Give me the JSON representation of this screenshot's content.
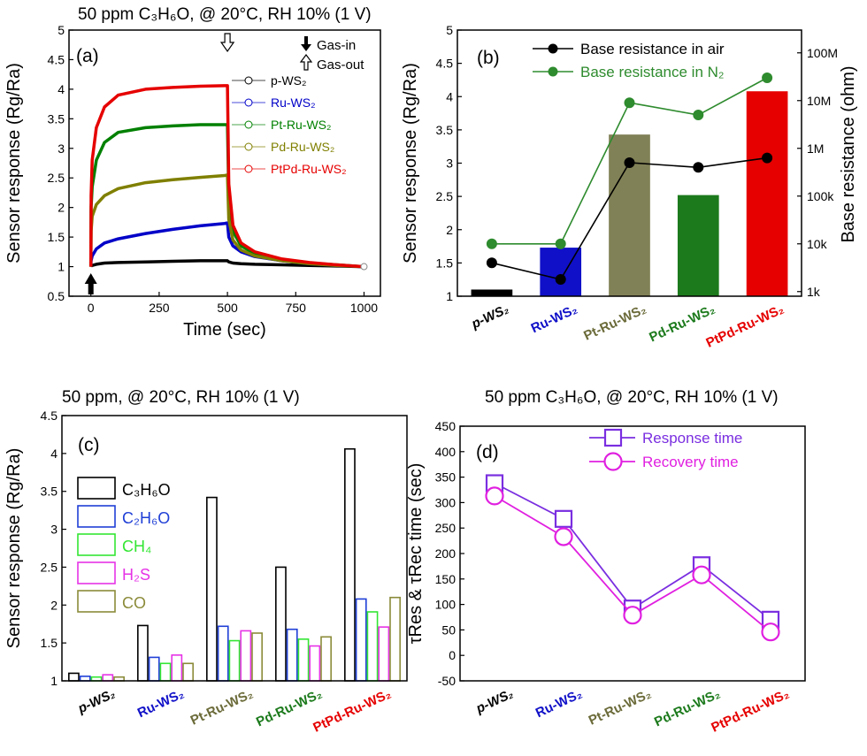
{
  "figure": {
    "panel_a_title": "50 ppm C₃H₆O, @ 20°C, RH 10% (1 V)",
    "panel_c_title": "50 ppm, @ 20°C, RH 10% (1 V)",
    "panel_d_title": "50 ppm C₃H₆O, @ 20°C, RH 10% (1 V)"
  },
  "chart_data": [
    {
      "panel": "(a)",
      "type": "line",
      "title": "50 ppm C₃H₆O, @ 20°C, RH 10% (1 V)",
      "xlabel": "Time (sec)",
      "ylabel": "Sensor response (Rg/Ra)",
      "xlim": [
        -80,
        1060
      ],
      "ylim": [
        0.5,
        5.0
      ],
      "xticks": [
        0,
        250,
        500,
        750,
        1000
      ],
      "yticks": [
        0.5,
        1.0,
        1.5,
        2.0,
        2.5,
        3.0,
        3.5,
        4.0,
        4.5,
        5.0
      ],
      "annotations": [
        "Gas-in",
        "Gas-out"
      ],
      "gas_in_time": 0,
      "gas_out_time": 500,
      "series": [
        {
          "name": "p-WS₂",
          "color": "#000000",
          "x": [
            0,
            1,
            5,
            20,
            50,
            100,
            200,
            300,
            400,
            490,
            500,
            505,
            520,
            550,
            600,
            700,
            800,
            900,
            1000
          ],
          "y": [
            1.0,
            1.01,
            1.02,
            1.04,
            1.06,
            1.07,
            1.08,
            1.09,
            1.1,
            1.1,
            1.1,
            1.08,
            1.06,
            1.05,
            1.04,
            1.03,
            1.02,
            1.01,
            1.0
          ]
        },
        {
          "name": "Ru-WS₂",
          "color": "#0000c8",
          "x": [
            0,
            1,
            5,
            20,
            50,
            100,
            200,
            300,
            400,
            490,
            500,
            505,
            520,
            550,
            600,
            700,
            800,
            900,
            1000
          ],
          "y": [
            1.0,
            1.1,
            1.18,
            1.3,
            1.4,
            1.47,
            1.56,
            1.63,
            1.69,
            1.73,
            1.74,
            1.5,
            1.35,
            1.25,
            1.17,
            1.1,
            1.05,
            1.02,
            1.0
          ]
        },
        {
          "name": "Pt-Ru-WS₂",
          "color": "#008000",
          "x": [
            0,
            1,
            5,
            20,
            50,
            100,
            200,
            300,
            400,
            490,
            500,
            505,
            520,
            550,
            600,
            700,
            800,
            900,
            1000
          ],
          "y": [
            1.0,
            2.0,
            2.35,
            2.8,
            3.1,
            3.27,
            3.35,
            3.38,
            3.4,
            3.4,
            3.4,
            2.2,
            1.6,
            1.35,
            1.22,
            1.12,
            1.06,
            1.03,
            1.0
          ]
        },
        {
          "name": "Pd-Ru-WS₂",
          "color": "#7f7f00",
          "x": [
            0,
            1,
            5,
            20,
            50,
            100,
            200,
            300,
            400,
            490,
            500,
            505,
            520,
            550,
            600,
            700,
            800,
            900,
            1000
          ],
          "y": [
            1.0,
            1.6,
            1.85,
            2.05,
            2.2,
            2.32,
            2.42,
            2.47,
            2.51,
            2.54,
            2.55,
            1.8,
            1.45,
            1.28,
            1.18,
            1.1,
            1.05,
            1.02,
            1.0
          ]
        },
        {
          "name": "PtPd-Ru-WS₂",
          "color": "#e60000",
          "x": [
            0,
            1,
            5,
            20,
            50,
            100,
            200,
            300,
            400,
            490,
            500,
            505,
            520,
            550,
            600,
            700,
            800,
            900,
            1000
          ],
          "y": [
            1.0,
            2.2,
            2.8,
            3.35,
            3.7,
            3.9,
            4.0,
            4.03,
            4.05,
            4.06,
            4.06,
            2.4,
            1.7,
            1.4,
            1.25,
            1.13,
            1.07,
            1.03,
            1.0
          ]
        }
      ]
    },
    {
      "panel": "(b)",
      "type": "bar",
      "categories": [
        "p-WS₂",
        "Ru-WS₂",
        "Pt-Ru-WS₂",
        "Pd-Ru-WS₂",
        "PtPd-Ru-WS₂"
      ],
      "category_colors": [
        "#000000",
        "#1010c8",
        "#6b6b3a",
        "#1c7a1c",
        "#e60000"
      ],
      "values": [
        1.1,
        1.73,
        3.43,
        2.52,
        4.08
      ],
      "ylabel": "Sensor response (Rg/Ra)",
      "ylim": [
        1.0,
        5.0
      ],
      "yticks": [
        1.0,
        1.5,
        2.0,
        2.5,
        3.0,
        3.5,
        4.0,
        4.5,
        5.0
      ],
      "y2label": "Base resistance (ohm)",
      "y2scale": "log",
      "y2lim": [
        800,
        300000000
      ],
      "y2ticks": [
        "1k",
        "10k",
        "100k",
        "1M",
        "10M",
        "100M"
      ],
      "y2tick_values": [
        1000,
        10000,
        100000,
        1000000,
        10000000,
        100000000
      ],
      "series": [
        {
          "name": "Base resistance in air",
          "color": "#000000",
          "values": [
            4000,
            1800,
            500000,
            400000,
            630000
          ]
        },
        {
          "name": "Base resistance in N₂",
          "color": "#2e8b2e",
          "values": [
            10000,
            10000,
            9000000,
            5000000,
            30000000
          ]
        }
      ]
    },
    {
      "panel": "(c)",
      "type": "bar",
      "title": "50 ppm, @ 20°C, RH 10% (1 V)",
      "categories": [
        "p-WS₂",
        "Ru-WS₂",
        "Pt-Ru-WS₂",
        "Pd-Ru-WS₂",
        "PtPd-Ru-WS₂"
      ],
      "category_colors": [
        "#000000",
        "#1010c8",
        "#6b6b3a",
        "#1c7a1c",
        "#e60000"
      ],
      "ylabel": "Sensor response (Rg/Ra)",
      "ylim": [
        1.0,
        4.5
      ],
      "yticks": [
        1.0,
        1.5,
        2.0,
        2.5,
        3.0,
        3.5,
        4.0,
        4.5
      ],
      "series": [
        {
          "name": "C₃H₆O",
          "color": "#000000",
          "values": [
            1.1,
            1.73,
            3.42,
            2.5,
            4.06
          ]
        },
        {
          "name": "C₂H₆O",
          "color": "#1f3fd6",
          "values": [
            1.06,
            1.31,
            1.72,
            1.68,
            2.08
          ]
        },
        {
          "name": "CH₄",
          "color": "#33e633",
          "values": [
            1.05,
            1.23,
            1.53,
            1.55,
            1.91
          ]
        },
        {
          "name": "H₂S",
          "color": "#e633e6",
          "values": [
            1.08,
            1.34,
            1.66,
            1.46,
            1.71
          ]
        },
        {
          "name": "CO",
          "color": "#8b8b3a",
          "values": [
            1.05,
            1.23,
            1.63,
            1.58,
            2.1
          ]
        }
      ]
    },
    {
      "panel": "(d)",
      "type": "line",
      "title": "50 ppm C₃H₆O, @ 20°C, RH 10% (1 V)",
      "categories": [
        "p-WS₂",
        "Ru-WS₂",
        "Pt-Ru-WS₂",
        "Pd-Ru-WS₂",
        "PtPd-Ru-WS₂"
      ],
      "category_colors": [
        "#000000",
        "#1010c8",
        "#6b6b3a",
        "#1c7a1c",
        "#e60000"
      ],
      "ylabel": "τRes & τRec time (sec)",
      "ylim": [
        -50,
        450
      ],
      "yticks": [
        -50,
        0,
        50,
        100,
        150,
        200,
        250,
        300,
        350,
        400,
        450
      ],
      "series": [
        {
          "name": "Response time",
          "color": "#7a2ee0",
          "marker": "square",
          "values": [
            338,
            268,
            92,
            177,
            70
          ]
        },
        {
          "name": "Recovery time",
          "color": "#e020e0",
          "marker": "circle",
          "values": [
            313,
            233,
            79,
            158,
            46
          ]
        }
      ]
    }
  ]
}
